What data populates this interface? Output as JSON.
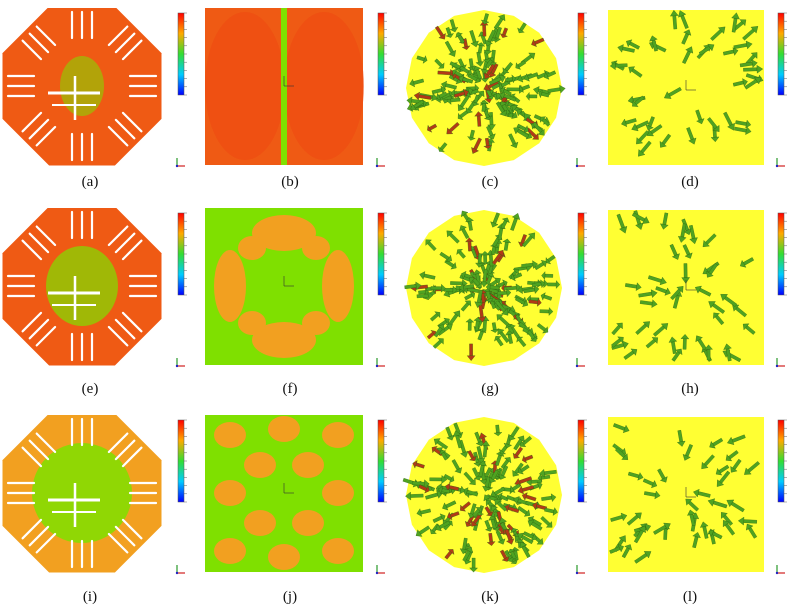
{
  "captions": [
    "(a)",
    "(b)",
    "(c)",
    "(d)",
    "(e)",
    "(f)",
    "(g)",
    "(h)",
    "(i)",
    "(j)",
    "(k)",
    "(l)"
  ],
  "colors": {
    "field_high": "#ef5a14",
    "field_mid": "#f2a020",
    "field_low": "#7fe000",
    "background_yellow": "#ffff33",
    "arrow_green": "#4fa321",
    "arrow_red": "#b23a17",
    "scale_top": "#ff0000",
    "scale_bottom": "#0000ff"
  },
  "icons": {
    "colorbar": "color-scale-legend",
    "axes": "axis-triad-icon"
  }
}
